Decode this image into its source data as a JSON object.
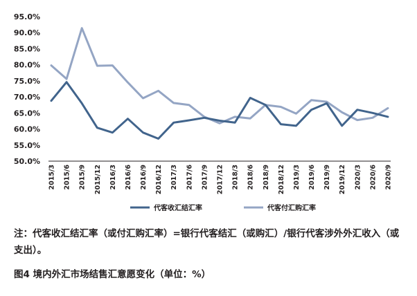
{
  "chart_data": {
    "type": "line",
    "categories": [
      "2015/3",
      "2015/6",
      "2015/9",
      "2015/12",
      "2016/3",
      "2016/6",
      "2016/9",
      "2016/12",
      "2017/3",
      "2017/6",
      "2017/9",
      "2017/12",
      "2018/3",
      "2018/6",
      "2018/9",
      "2018/12",
      "2019/3",
      "2019/6",
      "2019/9",
      "2019/12",
      "2020/3",
      "2020/6",
      "2020/9"
    ],
    "series": [
      {
        "name": "代客收汇结汇率",
        "color": "#41648c",
        "values": [
          68.8,
          74.6,
          68.0,
          60.4,
          58.9,
          63.2,
          58.9,
          57.0,
          62.0,
          62.7,
          63.5,
          62.6,
          62.0,
          69.7,
          67.5,
          61.5,
          61.0,
          66.0,
          68.0,
          61.0,
          66.0,
          65.0,
          63.8
        ]
      },
      {
        "name": "代客付汇购汇率",
        "color": "#94a5c4",
        "values": [
          79.8,
          75.6,
          91.4,
          79.7,
          79.8,
          74.5,
          69.6,
          71.9,
          68.1,
          67.5,
          63.8,
          61.8,
          63.8,
          63.3,
          67.5,
          66.9,
          64.8,
          69.0,
          68.5,
          65.2,
          62.8,
          63.5,
          66.5
        ]
      }
    ],
    "y_ticks": [
      "95.0%",
      "90.0%",
      "85.0%",
      "80.0%",
      "75.0%",
      "70.0%",
      "65.0%",
      "60.0%",
      "55.0%",
      "50.0%"
    ],
    "ylim": [
      50,
      95
    ],
    "grid": false,
    "legend_position": "bottom"
  },
  "note": "注：代客收汇结汇率（或付汇购汇率）=银行代客结汇（或购汇）/银行代客涉外外汇收入（或支出）。",
  "caption": "图4  境内外汇市场结售汇意愿变化（单位：%）"
}
